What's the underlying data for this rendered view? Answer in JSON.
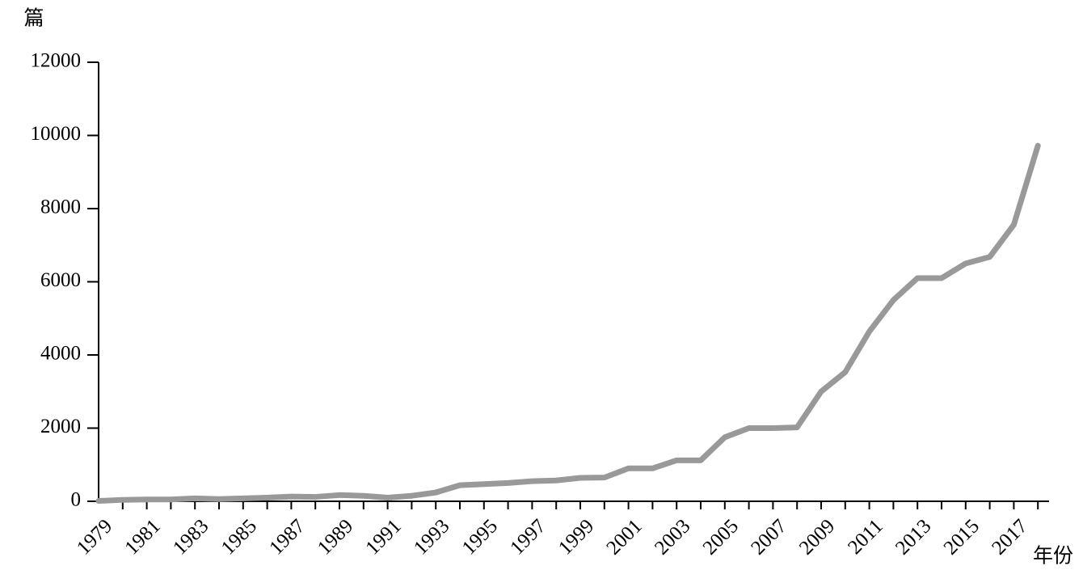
{
  "chart_data": {
    "type": "line",
    "y_label": "篇",
    "x_label": "年份",
    "categories": [
      "1979",
      null,
      "1981",
      null,
      "1983",
      null,
      "1985",
      null,
      "1987",
      null,
      "1989",
      null,
      "1991",
      null,
      "1993",
      null,
      "1995",
      null,
      "1997",
      null,
      "1999",
      null,
      "2001",
      null,
      "2003",
      null,
      "2005",
      null,
      "2007",
      null,
      "2009",
      null,
      "2011",
      null,
      "2013",
      null,
      "2015",
      null,
      "2017",
      null
    ],
    "series": [
      {
        "name": null,
        "color": "#999999",
        "values": [
          10,
          40,
          50,
          50,
          80,
          60,
          80,
          100,
          130,
          120,
          170,
          150,
          100,
          150,
          240,
          440,
          470,
          500,
          550,
          570,
          640,
          650,
          900,
          900,
          1120,
          1120,
          1750,
          2000,
          2000,
          2020,
          3000,
          3530,
          4640,
          5500,
          6100,
          6100,
          6500,
          6680,
          7560,
          9720
        ]
      }
    ],
    "ylim": [
      0,
      12000
    ],
    "yticks": [
      0,
      2000,
      4000,
      6000,
      8000,
      10000,
      12000
    ],
    "grid": false
  }
}
